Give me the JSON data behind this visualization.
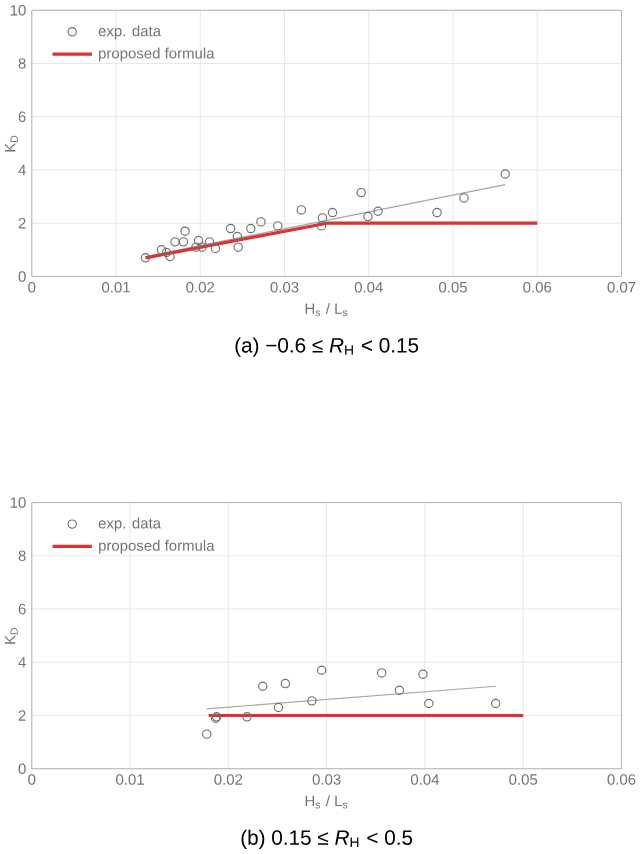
{
  "chart_data": [
    {
      "type": "scatter",
      "title": "(a) −0.6 ≤ *R*$_{H}$ < 0.15",
      "xlabel": "H$_{s}$ / L$_{s}$",
      "ylabel": "K$_{D}$",
      "xlim": [
        0,
        0.07
      ],
      "ylim": [
        0,
        10
      ],
      "xticks": [
        0,
        0.01,
        0.02,
        0.03,
        0.04,
        0.05,
        0.06,
        0.07
      ],
      "yticks": [
        0,
        2,
        4,
        6,
        8,
        10
      ],
      "grid": true,
      "legend": "top left",
      "series": [
        {
          "name": "exp. data",
          "marker": "circle",
          "color": "#707070",
          "x": [
            0.0135,
            0.0154,
            0.016,
            0.0164,
            0.017,
            0.0182,
            0.018,
            0.0198,
            0.0195,
            0.0202,
            0.0211,
            0.0218,
            0.0236,
            0.0244,
            0.0245,
            0.026,
            0.0272,
            0.0292,
            0.032,
            0.0345,
            0.0344,
            0.0357,
            0.0391,
            0.0399,
            0.0411,
            0.0481,
            0.0513,
            0.0562
          ],
          "values": [
            0.7,
            1.0,
            0.9,
            0.75,
            1.3,
            1.7,
            1.3,
            1.35,
            1.1,
            1.1,
            1.3,
            1.05,
            1.8,
            1.5,
            1.1,
            1.8,
            2.05,
            1.9,
            2.5,
            2.2,
            1.9,
            2.4,
            3.15,
            2.25,
            2.45,
            2.4,
            2.95,
            3.85
          ]
        },
        {
          "type": "line",
          "color": "#a6a6a6",
          "x": [
            0.0135,
            0.0562
          ],
          "values": [
            0.75,
            3.45
          ]
        },
        {
          "name": "proposed formula",
          "type": "line",
          "color": "#e03030",
          "x": [
            0.0135,
            0.035,
            0.06
          ],
          "values": [
            0.7,
            2.0,
            2.0
          ]
        }
      ]
    },
    {
      "type": "scatter",
      "title": "(b) 0.15 ≤ *R*$_{H}$ < 0.5",
      "xlabel": "H$_{s}$ / L$_{s}$",
      "ylabel": "K$_{D}$",
      "xlim": [
        0,
        0.06
      ],
      "ylim": [
        0,
        10
      ],
      "xticks": [
        0,
        0.01,
        0.02,
        0.03,
        0.04,
        0.05,
        0.06
      ],
      "yticks": [
        0,
        2,
        4,
        6,
        8,
        10
      ],
      "grid": true,
      "legend": "top left",
      "series": [
        {
          "name": "exp. data",
          "marker": "circle",
          "color": "#707070",
          "x": [
            0.0178,
            0.0187,
            0.0188,
            0.0219,
            0.0235,
            0.0251,
            0.0258,
            0.0285,
            0.0295,
            0.0356,
            0.0374,
            0.0398,
            0.0404,
            0.0472
          ],
          "values": [
            1.3,
            1.9,
            1.95,
            1.95,
            3.1,
            2.3,
            3.2,
            2.55,
            3.7,
            3.6,
            2.95,
            3.55,
            2.45,
            2.45
          ]
        },
        {
          "type": "line",
          "color": "#a6a6a6",
          "x": [
            0.0178,
            0.0472
          ],
          "values": [
            2.25,
            3.1
          ]
        },
        {
          "name": "proposed formula",
          "type": "line",
          "color": "#e03030",
          "x": [
            0.018,
            0.05
          ],
          "values": [
            2.0,
            2.0
          ]
        }
      ]
    }
  ]
}
